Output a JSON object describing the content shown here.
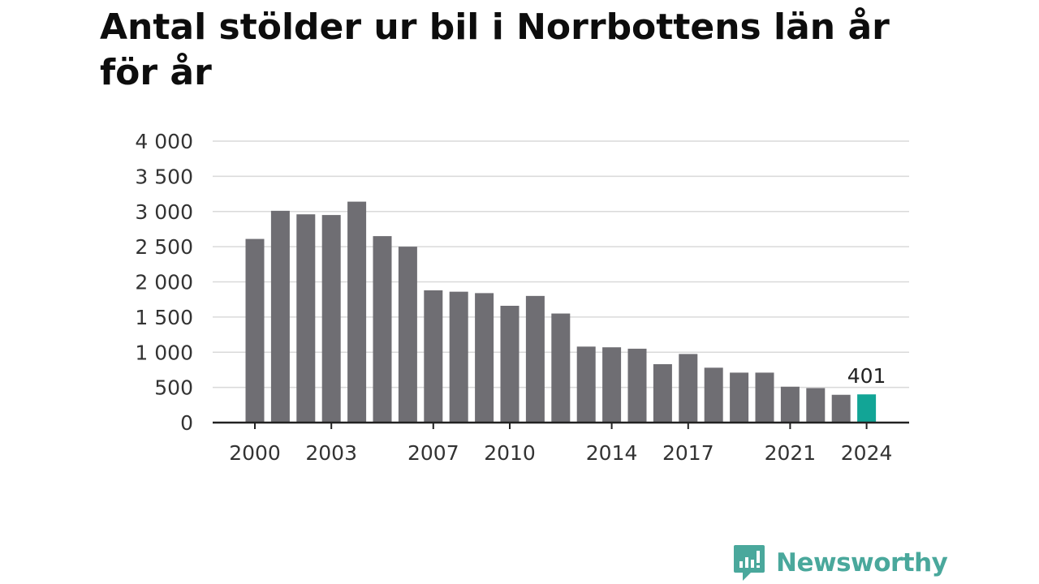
{
  "colors": {
    "bar": "#6f6e73",
    "highlight": "#12a596",
    "grid": "#d9d9d9",
    "axis": "#222222",
    "brand": "#4aa89c"
  },
  "chart_data": {
    "type": "bar",
    "title": "Antal stölder ur bil i Norrbottens län år för år",
    "xlabel": "",
    "ylabel": "",
    "ylim": [
      0,
      4000
    ],
    "yticks": [
      0,
      500,
      1000,
      1500,
      2000,
      2500,
      3000,
      3500,
      4000
    ],
    "ytick_labels": [
      "0",
      "500",
      "1 000",
      "1 500",
      "2 000",
      "2 500",
      "3 000",
      "3 500",
      "4 000"
    ],
    "categories": [
      2000,
      2001,
      2002,
      2003,
      2004,
      2005,
      2006,
      2007,
      2008,
      2009,
      2010,
      2011,
      2012,
      2013,
      2014,
      2015,
      2016,
      2017,
      2018,
      2019,
      2020,
      2021,
      2022,
      2023,
      2024
    ],
    "values": [
      2610,
      3010,
      2960,
      2950,
      3140,
      2650,
      2500,
      1880,
      1860,
      1840,
      1660,
      1800,
      1550,
      1080,
      1070,
      1050,
      830,
      975,
      780,
      710,
      710,
      510,
      490,
      395,
      401
    ],
    "xtick_labels": [
      "2000",
      "2003",
      "2007",
      "2010",
      "2014",
      "2017",
      "2021",
      "2024"
    ],
    "highlight_category": 2024,
    "annotation": "401",
    "grid": true,
    "legend": "none"
  },
  "brand": {
    "name": "Newsworthy",
    "icon": "newsworthy-logo-icon"
  }
}
